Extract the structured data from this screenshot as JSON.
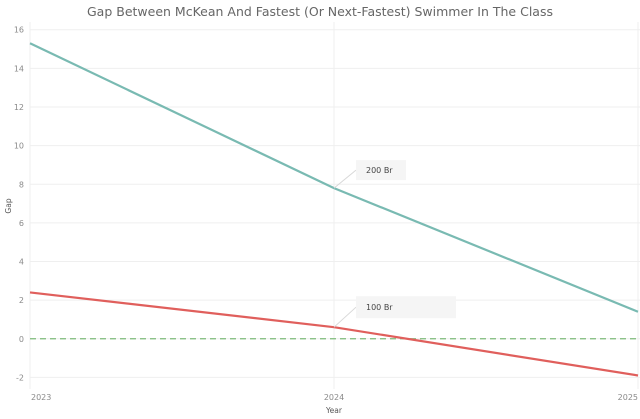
{
  "chart_data": {
    "type": "line",
    "title": "Gap Between McKean And Fastest (Or Next-Fastest) Swimmer In The Class",
    "xlabel": "Year",
    "ylabel": "Gap",
    "x": [
      "2023",
      "2024",
      "2025"
    ],
    "ylim": [
      -2.6,
      16.4
    ],
    "yticks": [
      -2,
      0,
      2,
      4,
      6,
      8,
      10,
      12,
      14,
      16
    ],
    "grid": true,
    "reference_line": {
      "y": 0,
      "style": "dashed",
      "color": "#7dbb7a"
    },
    "series": [
      {
        "name": "200 Br",
        "values": [
          15.3,
          7.8,
          1.4
        ],
        "color": "#79bab2"
      },
      {
        "name": "100 Br",
        "values": [
          2.4,
          0.6,
          -1.9
        ],
        "color": "#e05f5c"
      }
    ],
    "annotations": [
      {
        "text": "200 Br",
        "series": "200 Br",
        "x": "2024"
      },
      {
        "text": "100 Br",
        "series": "100 Br",
        "x": "2024"
      }
    ]
  }
}
